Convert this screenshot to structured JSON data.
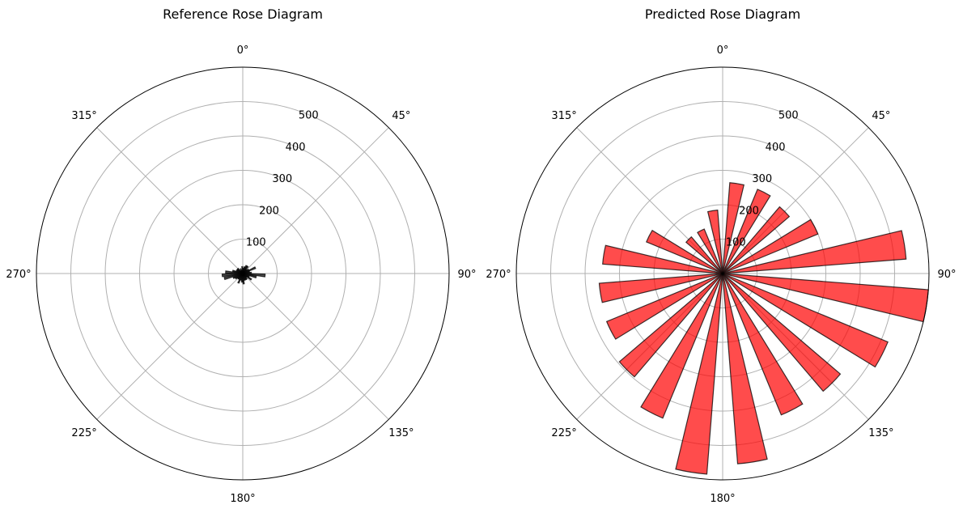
{
  "chart_data": [
    {
      "type": "bar",
      "subtype": "polar-rose",
      "title": "Reference Rose Diagram",
      "theta_zero": "north",
      "theta_direction": "clockwise",
      "theta_ticks": [
        "0°",
        "45°",
        "90°",
        "135°",
        "180°",
        "225°",
        "270°",
        "315°"
      ],
      "r_ticks": [
        "100",
        "200",
        "300",
        "400",
        "500"
      ],
      "r_tick_values": [
        100,
        200,
        300,
        400,
        500
      ],
      "rlim": [
        0,
        600
      ],
      "bin_width_deg": 10,
      "bar_width_deg": 7,
      "color": "#000000",
      "alpha": 0.7,
      "edge_color": "#000000",
      "angles_deg": [
        5,
        15,
        25,
        35,
        45,
        55,
        65,
        75,
        85,
        95,
        105,
        115,
        125,
        135,
        145,
        155,
        165,
        175,
        185,
        195,
        205,
        215,
        225,
        235,
        245,
        255,
        265,
        275,
        285,
        295,
        305,
        315,
        325,
        335,
        345,
        355
      ],
      "values": [
        15,
        20,
        25,
        25,
        15,
        20,
        40,
        20,
        25,
        65,
        40,
        20,
        30,
        15,
        20,
        20,
        20,
        30,
        25,
        20,
        30,
        20,
        20,
        25,
        30,
        55,
        60,
        50,
        30,
        20,
        20,
        20,
        10,
        15,
        10,
        20
      ],
      "grid": true
    },
    {
      "type": "bar",
      "subtype": "polar-rose",
      "title": "Predicted Rose Diagram",
      "theta_zero": "north",
      "theta_direction": "clockwise",
      "theta_ticks": [
        "0°",
        "45°",
        "90°",
        "135°",
        "180°",
        "225°",
        "270°",
        "315°"
      ],
      "r_ticks": [
        "100",
        "200",
        "300",
        "400",
        "500"
      ],
      "r_tick_values": [
        100,
        200,
        300,
        400,
        500
      ],
      "rlim": [
        0,
        600
      ],
      "bin_width_deg": 18,
      "bar_width_deg": 9,
      "color": "#ff0000",
      "alpha": 0.7,
      "edge_color": "#000000",
      "angles_deg": [
        9,
        27,
        45,
        63,
        81,
        99,
        117,
        135,
        153,
        171,
        189,
        207,
        225,
        243,
        261,
        279,
        297,
        315,
        333,
        351
      ],
      "values": [
        265,
        265,
        255,
        300,
        535,
        605,
        520,
        450,
        445,
        555,
        585,
        455,
        395,
        365,
        360,
        350,
        240,
        140,
        140,
        185
      ],
      "grid": true
    }
  ]
}
